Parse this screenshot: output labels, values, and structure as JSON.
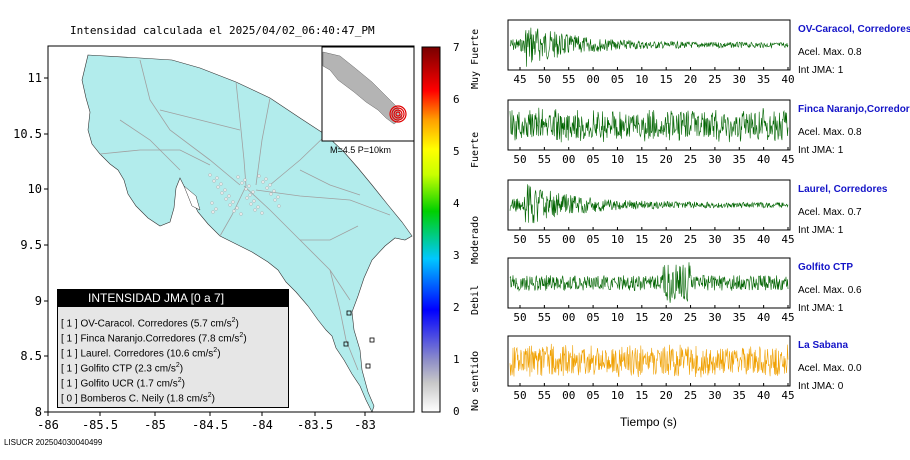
{
  "title": "Intensidad calculada el 2025/04/02_06:40:47_PM",
  "map": {
    "x_ticks": [
      "-86",
      "-85.5",
      "-85",
      "-84.5",
      "-84",
      "-83.5",
      "-83"
    ],
    "y_ticks": [
      "11",
      "10.5",
      "10",
      "9.5",
      "9",
      "8.5",
      "8"
    ],
    "land_color": "#b2ecec",
    "inset_label": "M=4.5 P=10km"
  },
  "legend": {
    "title": "INTENSIDAD JMA [0 a 7]",
    "items": [
      {
        "level": "[ 1 ]",
        "station": "OV-Caracol. Corredores",
        "accel": "(5.7 cm/s",
        "sup": "2",
        "close": ")"
      },
      {
        "level": "[ 1 ]",
        "station": "Finca Naranjo.Corredores",
        "accel": "(7.8 cm/s",
        "sup": "2",
        "close": ")"
      },
      {
        "level": "[ 1 ]",
        "station": "Laurel. Corredores",
        "accel": "(10.6 cm/s",
        "sup": "2",
        "close": ")"
      },
      {
        "level": "[ 1 ]",
        "station": "Golfito CTP",
        "accel": "(2.3 cm/s",
        "sup": "2",
        "close": ")"
      },
      {
        "level": "[ 1 ]",
        "station": "Golfito UCR",
        "accel": "(1.7 cm/s",
        "sup": "2",
        "close": ")"
      },
      {
        "level": "[ 0 ]",
        "station": "Bomberos C. Neily",
        "accel": "(1.8 cm/s",
        "sup": "2",
        "close": ")"
      }
    ]
  },
  "colorbar": {
    "ticks": [
      "7",
      "6",
      "5",
      "4",
      "3",
      "2",
      "1",
      "0"
    ],
    "labels": [
      "Muy Fuerte",
      "Fuerte",
      "Moderado",
      "Debil",
      "No sentido"
    ]
  },
  "traces": [
    {
      "name": "OV-Caracol, Corredores",
      "accel_label": "Acel. Max.",
      "accel": "0.8",
      "int_label": "Int JMA:",
      "int": "1",
      "ticks": [
        "45",
        "50",
        "55",
        "00",
        "05",
        "10",
        "15",
        "20",
        "25",
        "30",
        "35",
        "40"
      ],
      "color": "#006400",
      "pattern": "decay"
    },
    {
      "name": "Finca Naranjo,Corredores",
      "accel_label": "Acel. Max.",
      "accel": "0.8",
      "int_label": "Int JMA:",
      "int": "1",
      "ticks": [
        "50",
        "55",
        "00",
        "05",
        "10",
        "15",
        "20",
        "25",
        "30",
        "35",
        "40",
        "45"
      ],
      "color": "#006400",
      "pattern": "steady"
    },
    {
      "name": "Laurel, Corredores",
      "accel_label": "Acel. Max.",
      "accel": "0.7",
      "int_label": "Int JMA:",
      "int": "1",
      "ticks": [
        "50",
        "55",
        "00",
        "05",
        "10",
        "15",
        "20",
        "25",
        "30",
        "35",
        "40",
        "45"
      ],
      "color": "#006400",
      "pattern": "decay"
    },
    {
      "name": "Golfito CTP",
      "accel_label": "Acel. Max.",
      "accel": "0.6",
      "int_label": "Int JMA:",
      "int": "1",
      "ticks": [
        "50",
        "55",
        "00",
        "05",
        "10",
        "15",
        "20",
        "25",
        "30",
        "35",
        "40",
        "45"
      ],
      "color": "#006400",
      "pattern": "burst"
    },
    {
      "name": "La Sabana",
      "accel_label": "Acel. Max.",
      "accel": "0.0",
      "int_label": "Int JMA:",
      "int": "0",
      "ticks": [
        "50",
        "55",
        "00",
        "05",
        "10",
        "15",
        "20",
        "25",
        "30",
        "35",
        "40",
        "45"
      ],
      "color": "#f0a000",
      "pattern": "steady"
    }
  ],
  "x_axis_label": "Tiempo (s)",
  "footer": "LISUCR 202504030040499"
}
